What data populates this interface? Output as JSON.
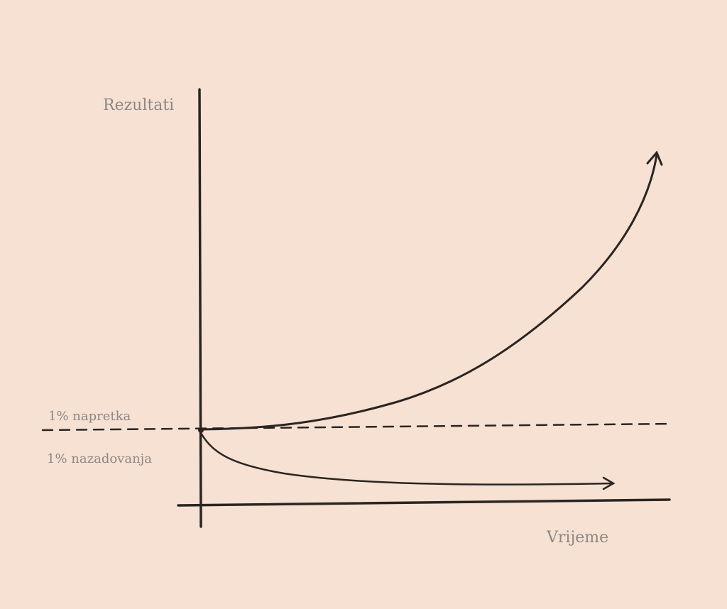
{
  "axes": {
    "y_label": "Rezultati",
    "x_label": "Vrijeme"
  },
  "lines": {
    "improvement": "1% napretka",
    "decline": "1% nazadovanja"
  }
}
